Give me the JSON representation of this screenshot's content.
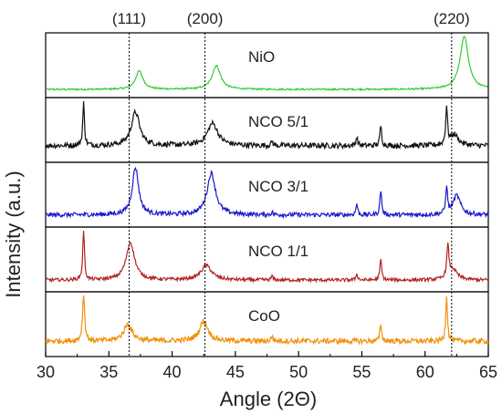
{
  "chart_data": {
    "type": "line",
    "xlabel": "Angle (2Θ)",
    "ylabel": "Intensity (a.u.)",
    "xlim": [
      30,
      65
    ],
    "x_ticks": [
      30,
      35,
      40,
      45,
      50,
      55,
      60,
      65
    ],
    "grid": false,
    "stacked_panels": true,
    "reference_lines": [
      {
        "label": "(111)",
        "x": 36.6
      },
      {
        "label": "(200)",
        "x": 42.6
      },
      {
        "label": "(220)",
        "x": 62.1
      }
    ],
    "series": [
      {
        "name": "NiO",
        "color": "#33cc33",
        "noise": 0.015,
        "baseline": 0.05,
        "peaks": [
          [
            37.4,
            0.35,
            0.35
          ],
          [
            43.5,
            0.45,
            0.4
          ],
          [
            63.1,
            1.0,
            0.4
          ]
        ]
      },
      {
        "name": "NCO 5/1",
        "color": "#111111",
        "noise": 0.06,
        "baseline": 0.25,
        "peaks": [
          [
            33.0,
            0.95,
            0.08
          ],
          [
            37.1,
            0.75,
            0.4
          ],
          [
            43.2,
            0.5,
            0.5
          ],
          [
            47.9,
            0.1,
            0.08
          ],
          [
            54.6,
            0.2,
            0.08
          ],
          [
            56.5,
            0.45,
            0.08
          ],
          [
            61.7,
            0.85,
            0.08
          ],
          [
            62.3,
            0.25,
            0.4
          ]
        ]
      },
      {
        "name": "NCO 3/1",
        "color": "#1a1acc",
        "noise": 0.04,
        "baseline": 0.12,
        "peaks": [
          [
            37.1,
            0.85,
            0.3
          ],
          [
            43.1,
            0.75,
            0.4
          ],
          [
            47.9,
            0.05,
            0.08
          ],
          [
            54.6,
            0.2,
            0.08
          ],
          [
            56.5,
            0.45,
            0.08
          ],
          [
            61.7,
            0.5,
            0.08
          ],
          [
            62.5,
            0.35,
            0.35
          ]
        ]
      },
      {
        "name": "NCO 1/1",
        "color": "#b22222",
        "noise": 0.04,
        "baseline": 0.15,
        "peaks": [
          [
            33.0,
            1.2,
            0.08
          ],
          [
            36.7,
            0.9,
            0.4
          ],
          [
            42.7,
            0.35,
            0.5
          ],
          [
            47.9,
            0.1,
            0.08
          ],
          [
            54.6,
            0.15,
            0.08
          ],
          [
            56.5,
            0.5,
            0.08
          ],
          [
            61.8,
            0.75,
            0.1
          ],
          [
            62.2,
            0.25,
            0.4
          ]
        ]
      },
      {
        "name": "CoO",
        "color": "#f0900a",
        "noise": 0.08,
        "baseline": 0.3,
        "peaks": [
          [
            33.0,
            1.4,
            0.1
          ],
          [
            36.5,
            0.5,
            0.4
          ],
          [
            42.5,
            0.6,
            0.4
          ],
          [
            47.9,
            0.15,
            0.08
          ],
          [
            56.5,
            0.5,
            0.08
          ],
          [
            61.7,
            1.4,
            0.08
          ]
        ]
      }
    ]
  }
}
